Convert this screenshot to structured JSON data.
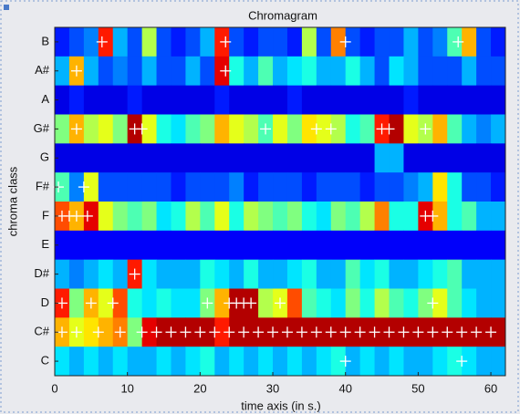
{
  "chart_data": {
    "type": "heatmap",
    "title": "Chromagram",
    "xlabel": "time axis (in s.)",
    "ylabel": "chroma class",
    "colormap": "jet",
    "zlim": [
      0,
      1
    ],
    "xlim": [
      0,
      62
    ],
    "xticks": [
      0,
      10,
      20,
      30,
      40,
      50,
      60
    ],
    "xbins": [
      0,
      2,
      4,
      6,
      8,
      10,
      12,
      14,
      16,
      18,
      20,
      22,
      24,
      26,
      28,
      30,
      32,
      34,
      36,
      38,
      40,
      42,
      44,
      46,
      48,
      50,
      52,
      54,
      56,
      58,
      60,
      62
    ],
    "categories": [
      "B",
      "A#",
      "A",
      "G#",
      "G",
      "F#",
      "F",
      "E",
      "D#",
      "D",
      "C#",
      "C"
    ],
    "z": [
      [
        0.15,
        0.2,
        0.25,
        0.85,
        0.3,
        0.2,
        0.55,
        0.2,
        0.15,
        0.2,
        0.3,
        0.85,
        0.2,
        0.15,
        0.2,
        0.2,
        0.15,
        0.55,
        0.2,
        0.75,
        0.2,
        0.15,
        0.2,
        0.2,
        0.3,
        0.2,
        0.25,
        0.45,
        0.7,
        0.2,
        0.15
      ],
      [
        0.3,
        0.7,
        0.3,
        0.2,
        0.25,
        0.2,
        0.3,
        0.2,
        0.2,
        0.3,
        0.2,
        0.9,
        0.4,
        0.3,
        0.45,
        0.3,
        0.35,
        0.4,
        0.3,
        0.3,
        0.4,
        0.3,
        0.2,
        0.35,
        0.3,
        0.2,
        0.2,
        0.2,
        0.3,
        0.2,
        0.2
      ],
      [
        0.1,
        0.15,
        0.1,
        0.1,
        0.1,
        0.15,
        0.1,
        0.1,
        0.1,
        0.1,
        0.1,
        0.15,
        0.1,
        0.1,
        0.1,
        0.1,
        0.15,
        0.1,
        0.1,
        0.1,
        0.1,
        0.1,
        0.1,
        0.1,
        0.15,
        0.1,
        0.1,
        0.1,
        0.1,
        0.1,
        0.1
      ],
      [
        0.5,
        0.7,
        0.55,
        0.6,
        0.5,
        0.95,
        0.6,
        0.4,
        0.35,
        0.45,
        0.5,
        0.7,
        0.6,
        0.55,
        0.45,
        0.6,
        0.5,
        0.65,
        0.6,
        0.55,
        0.4,
        0.45,
        0.85,
        0.95,
        0.6,
        0.55,
        0.7,
        0.45,
        0.3,
        0.25,
        0.3
      ],
      [
        0.1,
        0.1,
        0.1,
        0.1,
        0.1,
        0.1,
        0.1,
        0.1,
        0.1,
        0.1,
        0.1,
        0.1,
        0.1,
        0.1,
        0.1,
        0.1,
        0.1,
        0.1,
        0.1,
        0.1,
        0.1,
        0.1,
        0.3,
        0.3,
        0.1,
        0.1,
        0.1,
        0.1,
        0.1,
        0.1,
        0.1
      ],
      [
        0.45,
        0.25,
        0.6,
        0.2,
        0.2,
        0.2,
        0.2,
        0.2,
        0.15,
        0.2,
        0.2,
        0.2,
        0.25,
        0.15,
        0.2,
        0.2,
        0.2,
        0.15,
        0.2,
        0.2,
        0.2,
        0.15,
        0.2,
        0.2,
        0.25,
        0.3,
        0.65,
        0.4,
        0.2,
        0.2,
        0.15
      ],
      [
        0.8,
        0.7,
        0.9,
        0.6,
        0.5,
        0.45,
        0.5,
        0.35,
        0.4,
        0.55,
        0.45,
        0.6,
        0.4,
        0.55,
        0.5,
        0.45,
        0.5,
        0.4,
        0.35,
        0.5,
        0.45,
        0.55,
        0.75,
        0.4,
        0.4,
        0.9,
        0.7,
        0.4,
        0.45,
        0.3,
        0.3
      ],
      [
        0.12,
        0.12,
        0.12,
        0.12,
        0.12,
        0.12,
        0.12,
        0.12,
        0.12,
        0.12,
        0.12,
        0.12,
        0.12,
        0.12,
        0.12,
        0.12,
        0.12,
        0.12,
        0.12,
        0.12,
        0.12,
        0.12,
        0.12,
        0.12,
        0.12,
        0.12,
        0.12,
        0.12,
        0.12,
        0.12,
        0.12
      ],
      [
        0.3,
        0.25,
        0.3,
        0.35,
        0.3,
        0.85,
        0.35,
        0.3,
        0.3,
        0.3,
        0.4,
        0.35,
        0.3,
        0.4,
        0.3,
        0.3,
        0.35,
        0.4,
        0.3,
        0.3,
        0.45,
        0.35,
        0.4,
        0.3,
        0.3,
        0.35,
        0.4,
        0.45,
        0.3,
        0.3,
        0.3
      ],
      [
        0.85,
        0.5,
        0.7,
        0.6,
        0.8,
        0.4,
        0.35,
        0.4,
        0.35,
        0.35,
        0.5,
        0.7,
        0.95,
        0.95,
        0.55,
        0.6,
        0.8,
        0.45,
        0.4,
        0.35,
        0.5,
        0.4,
        0.55,
        0.45,
        0.4,
        0.5,
        0.6,
        0.45,
        0.35,
        0.3,
        0.3
      ],
      [
        0.7,
        0.6,
        0.65,
        0.7,
        0.75,
        0.5,
        0.9,
        0.95,
        0.95,
        0.95,
        0.95,
        0.85,
        0.95,
        0.95,
        0.95,
        0.95,
        0.95,
        0.95,
        0.95,
        0.95,
        0.95,
        0.95,
        0.95,
        0.95,
        0.95,
        0.95,
        0.95,
        0.95,
        0.95,
        0.95,
        0.95
      ],
      [
        0.35,
        0.3,
        0.35,
        0.3,
        0.35,
        0.3,
        0.3,
        0.35,
        0.3,
        0.35,
        0.4,
        0.3,
        0.35,
        0.3,
        0.35,
        0.3,
        0.35,
        0.3,
        0.35,
        0.4,
        0.3,
        0.35,
        0.3,
        0.35,
        0.3,
        0.3,
        0.35,
        0.4,
        0.35,
        0.3,
        0.3
      ]
    ],
    "markers": {
      "color": "#ffffff",
      "x": [
        6.5,
        23.5,
        40,
        55.5,
        3,
        23.5,
        3,
        11,
        12,
        29,
        36,
        38,
        45,
        46,
        51,
        0.5,
        4,
        1,
        2,
        3,
        4.5,
        51,
        52,
        11,
        1,
        5,
        8,
        21,
        24,
        25,
        26,
        27,
        31,
        52,
        1,
        3,
        6,
        9,
        12,
        14,
        16,
        18,
        20,
        22,
        24,
        26,
        28,
        30,
        32,
        34,
        36,
        38,
        40,
        42,
        44,
        46,
        48,
        50,
        52,
        54,
        56,
        58,
        60,
        40,
        56
      ],
      "y": [
        "B",
        "B",
        "B",
        "B",
        "A#",
        "A#",
        "G#",
        "G#",
        "G#",
        "G#",
        "G#",
        "G#",
        "G#",
        "G#",
        "G#",
        "F#",
        "F#",
        "F",
        "F",
        "F",
        "F",
        "F",
        "F",
        "D#",
        "D",
        "D",
        "D",
        "D",
        "D",
        "D",
        "D",
        "D",
        "D",
        "D",
        "C#",
        "C#",
        "C#",
        "C#",
        "C#",
        "C#",
        "C#",
        "C#",
        "C#",
        "C#",
        "C#",
        "C#",
        "C#",
        "C#",
        "C#",
        "C#",
        "C#",
        "C#",
        "C#",
        "C#",
        "C#",
        "C#",
        "C#",
        "C#",
        "C#",
        "C#",
        "C#",
        "C#",
        "C#",
        "C",
        "C"
      ]
    }
  }
}
